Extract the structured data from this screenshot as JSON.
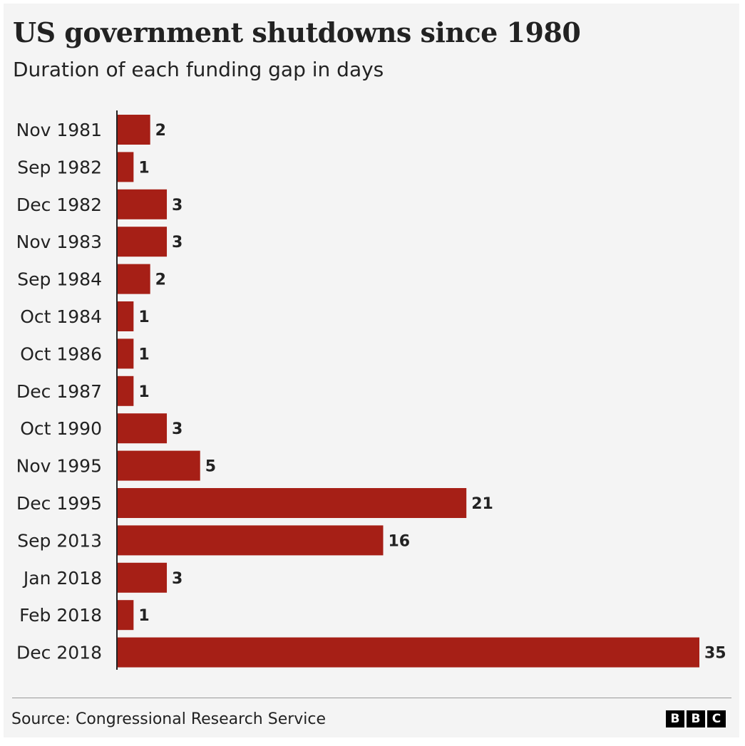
{
  "header": {
    "title": "US government shutdowns since 1980",
    "subtitle": "Duration of each funding gap in days"
  },
  "footer": {
    "source": "Source: Congressional Research Service",
    "logo_letters": [
      "B",
      "B",
      "C"
    ]
  },
  "colors": {
    "bar": "#a61f16",
    "background": "#f4f4f4",
    "text": "#222222"
  },
  "chart_data": {
    "type": "bar",
    "orientation": "horizontal",
    "title": "US government shutdowns since 1980",
    "subtitle": "Duration of each funding gap in days",
    "xlabel": "",
    "ylabel": "",
    "xlim": [
      0,
      35
    ],
    "grid": false,
    "legend": "none",
    "categories": [
      "Nov 1981",
      "Sep 1982",
      "Dec 1982",
      "Nov 1983",
      "Sep 1984",
      "Oct 1984",
      "Oct 1986",
      "Dec 1987",
      "Oct 1990",
      "Nov 1995",
      "Dec 1995",
      "Sep 2013",
      "Jan 2018",
      "Feb 2018",
      "Dec 2018"
    ],
    "values": [
      2,
      1,
      3,
      3,
      2,
      1,
      1,
      1,
      3,
      5,
      21,
      16,
      3,
      1,
      35
    ]
  }
}
